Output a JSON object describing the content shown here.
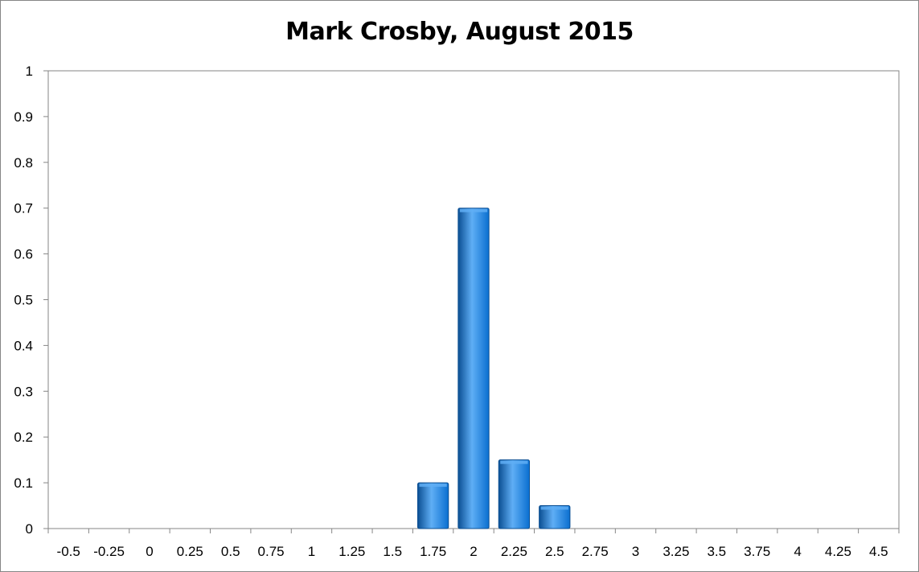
{
  "chart_data": {
    "type": "bar",
    "title": "Mark Crosby, August 2015",
    "xlabel": "",
    "ylabel": "",
    "categories": [
      "-0.5",
      "-0.25",
      "0",
      "0.25",
      "0.5",
      "0.75",
      "1",
      "1.25",
      "1.5",
      "1.75",
      "2",
      "2.25",
      "2.5",
      "2.75",
      "3",
      "3.25",
      "3.5",
      "3.75",
      "4",
      "4.25",
      "4.5"
    ],
    "values": [
      0,
      0,
      0,
      0,
      0,
      0,
      0,
      0,
      0,
      0.1,
      0.7,
      0.15,
      0.05,
      0,
      0,
      0,
      0,
      0,
      0,
      0,
      0
    ],
    "ylim": [
      0,
      1
    ],
    "yticks": [
      "0",
      "0.1",
      "0.2",
      "0.3",
      "0.4",
      "0.5",
      "0.6",
      "0.7",
      "0.8",
      "0.9",
      "1"
    ],
    "grid": false,
    "legend": "none",
    "bar_color": "#0A6FD0",
    "bar_highlight": "#5FAEF5",
    "bar_border": "#0B4F93"
  }
}
